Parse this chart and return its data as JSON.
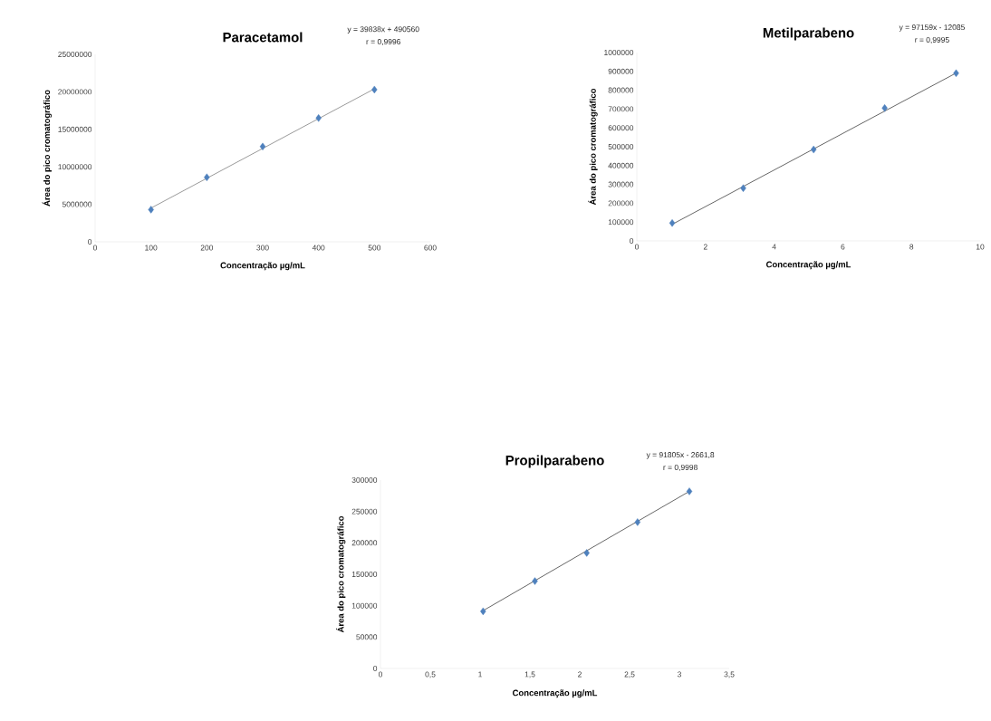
{
  "chart_data": [
    {
      "type": "scatter",
      "title": "Paracetamol",
      "xlabel": "Concentração µg/mL",
      "ylabel": "Área do pico cromatográfico",
      "annotations": [
        "y = 39838x + 490560",
        "r = 0,9996"
      ],
      "xlim": [
        0,
        600
      ],
      "ylim": [
        0,
        25000000
      ],
      "xticks": [
        0,
        100,
        200,
        300,
        400,
        500,
        600
      ],
      "yticks": [
        0,
        5000000,
        10000000,
        15000000,
        20000000,
        25000000
      ],
      "series": [
        {
          "color": "#4f81bd",
          "marker": "diamond",
          "x": [
            100,
            200,
            300,
            400,
            500
          ],
          "values": [
            4300000,
            8600000,
            12700000,
            16500000,
            20300000
          ]
        },
        {
          "type": "line",
          "marker": "none",
          "color": "#808080",
          "x": [
            100,
            500
          ],
          "values": [
            4500000,
            20400000
          ]
        }
      ]
    },
    {
      "type": "scatter",
      "title": "Metilparabeno",
      "xlabel": "Concentração µg/mL",
      "ylabel": "Área do pico cromatográfico",
      "annotations": [
        "y = 97159x - 12085",
        "r = 0,9995"
      ],
      "xlim": [
        0,
        10
      ],
      "ylim": [
        0,
        1000000
      ],
      "xticks": [
        0,
        2,
        4,
        6,
        8,
        10
      ],
      "yticks": [
        0,
        100000,
        200000,
        300000,
        400000,
        500000,
        600000,
        700000,
        800000,
        900000,
        1000000
      ],
      "series": [
        {
          "color": "#4f81bd",
          "marker": "diamond",
          "x": [
            1.03,
            3.1,
            5.15,
            7.22,
            9.3
          ],
          "values": [
            95000,
            280000,
            485000,
            705000,
            890000
          ]
        },
        {
          "type": "line",
          "marker": "none",
          "color": "#404040",
          "x": [
            1.03,
            9.3
          ],
          "values": [
            88000,
            891000
          ]
        }
      ]
    },
    {
      "type": "scatter",
      "title": "Propilparabeno",
      "xlabel": "Concentração µg/mL",
      "ylabel": "Área do pico cromatográfico",
      "annotations": [
        "y = 91805x - 2661,8",
        "r = 0,9998"
      ],
      "xlim": [
        0,
        3.5
      ],
      "ylim": [
        0,
        300000
      ],
      "xticks": [
        0,
        {
          "value": 0.5,
          "label": "0,5"
        },
        1,
        {
          "value": 1.5,
          "label": "1,5"
        },
        2,
        {
          "value": 2.5,
          "label": "2,5"
        },
        3,
        {
          "value": 3.5,
          "label": "3,5"
        }
      ],
      "yticks": [
        0,
        50000,
        100000,
        150000,
        200000,
        250000,
        300000
      ],
      "series": [
        {
          "color": "#4f81bd",
          "marker": "diamond",
          "x": [
            1.03,
            1.55,
            2.07,
            2.58,
            3.1
          ],
          "values": [
            91000,
            139000,
            184000,
            233000,
            282000
          ]
        },
        {
          "type": "line",
          "marker": "none",
          "color": "#404040",
          "x": [
            1.03,
            3.1
          ],
          "values": [
            92000,
            282000
          ]
        }
      ]
    }
  ]
}
